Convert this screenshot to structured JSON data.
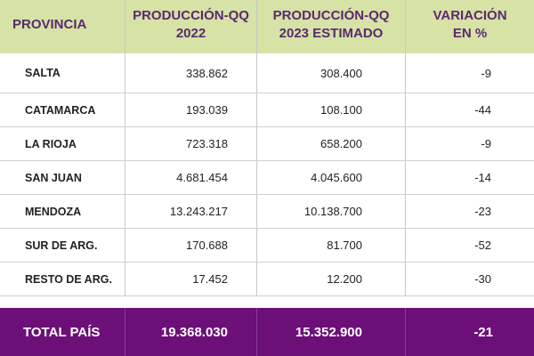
{
  "header": {
    "col1": "PROVINCIA",
    "col2": "PRODUCCIÓN-QQ\n2022",
    "col3": "PRODUCCIÓN-QQ\n2023 ESTIMADO",
    "col4": "VARIACIÓN\nEN %"
  },
  "rows": [
    {
      "provincia": "SALTA",
      "p2022": "338.862",
      "p2023": "308.400",
      "variacion": "-9"
    },
    {
      "provincia": "CATAMARCA",
      "p2022": "193.039",
      "p2023": "108.100",
      "variacion": "-44"
    },
    {
      "provincia": "LA RIOJA",
      "p2022": "723.318",
      "p2023": "658.200",
      "variacion": "-9"
    },
    {
      "provincia": "SAN JUAN",
      "p2022": "4.681.454",
      "p2023": "4.045.600",
      "variacion": "-14"
    },
    {
      "provincia": "MENDOZA",
      "p2022": "13.243.217",
      "p2023": "10.138.700",
      "variacion": "-23"
    },
    {
      "provincia": "SUR DE ARG.",
      "p2022": "170.688",
      "p2023": "81.700",
      "variacion": "-52"
    },
    {
      "provincia": "RESTO DE ARG.",
      "p2022": "17.452",
      "p2023": "12.200",
      "variacion": "-30"
    }
  ],
  "total": {
    "label": "TOTAL PAÍS",
    "p2022": "19.368.030",
    "p2023": "15.352.900",
    "variacion": "-21"
  },
  "colors": {
    "header_bg": "#d6e2a6",
    "header_text": "#5a2a6e",
    "total_bg": "#6c0f78",
    "total_text": "#ffffff"
  }
}
